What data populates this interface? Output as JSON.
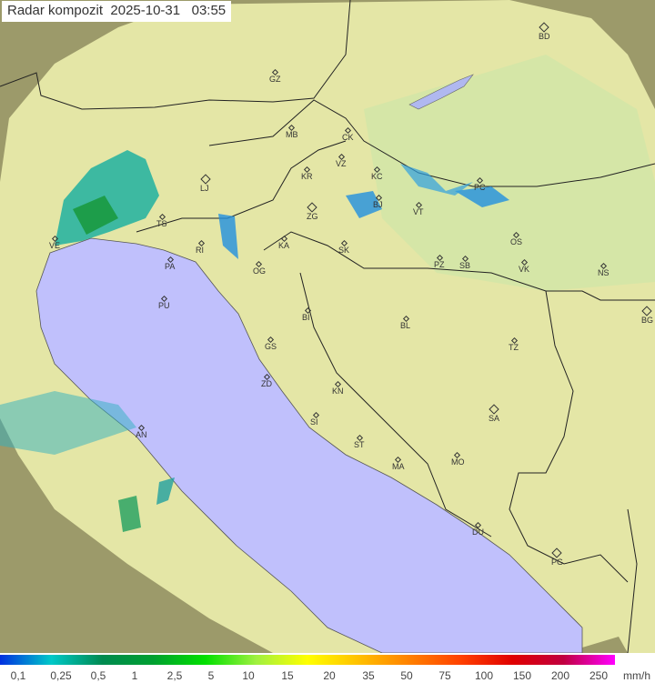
{
  "title": "Radar kompozit  2025-10-31   03:55",
  "colors": {
    "sea": "#c0c0fc",
    "land_in_coverage": "#e4e6a6",
    "land_outside_coverage": "#9c9a6a",
    "border": "#222222",
    "legend_gradient": [
      "#0030e0",
      "#00c8c8",
      "#008a50",
      "#00a030",
      "#00e000",
      "#a0f040",
      "#ffff00",
      "#ffc000",
      "#ff8000",
      "#ff4000",
      "#e00000",
      "#c00040",
      "#ff00ff"
    ]
  },
  "cities": [
    {
      "code": "BD",
      "type": "capital"
    },
    {
      "code": "GZ"
    },
    {
      "code": "MB"
    },
    {
      "code": "CK"
    },
    {
      "code": "VZ"
    },
    {
      "code": "KR"
    },
    {
      "code": "KC"
    },
    {
      "code": "LJ",
      "type": "capital"
    },
    {
      "code": "PC"
    },
    {
      "code": "BJ"
    },
    {
      "code": "VT"
    },
    {
      "code": "ZG",
      "type": "capital"
    },
    {
      "code": "TS"
    },
    {
      "code": "VE"
    },
    {
      "code": "RI"
    },
    {
      "code": "KA"
    },
    {
      "code": "SK"
    },
    {
      "code": "OS"
    },
    {
      "code": "PA"
    },
    {
      "code": "OG"
    },
    {
      "code": "PZ"
    },
    {
      "code": "SB"
    },
    {
      "code": "VK"
    },
    {
      "code": "NS"
    },
    {
      "code": "PU"
    },
    {
      "code": "BI"
    },
    {
      "code": "BL"
    },
    {
      "code": "BG",
      "type": "capital"
    },
    {
      "code": "GS"
    },
    {
      "code": "TZ"
    },
    {
      "code": "ZD"
    },
    {
      "code": "KN"
    },
    {
      "code": "SA",
      "type": "capital"
    },
    {
      "code": "SI"
    },
    {
      "code": "AN"
    },
    {
      "code": "ST"
    },
    {
      "code": "MA"
    },
    {
      "code": "MO"
    },
    {
      "code": "DU"
    },
    {
      "code": "PG",
      "type": "capital"
    }
  ],
  "legend": {
    "labels": [
      "0,1",
      "0,25",
      "0,5",
      "1",
      "2,5",
      "5",
      "10",
      "15",
      "20",
      "35",
      "50",
      "75",
      "100",
      "150",
      "200",
      "250"
    ],
    "unit": "mm/h"
  }
}
